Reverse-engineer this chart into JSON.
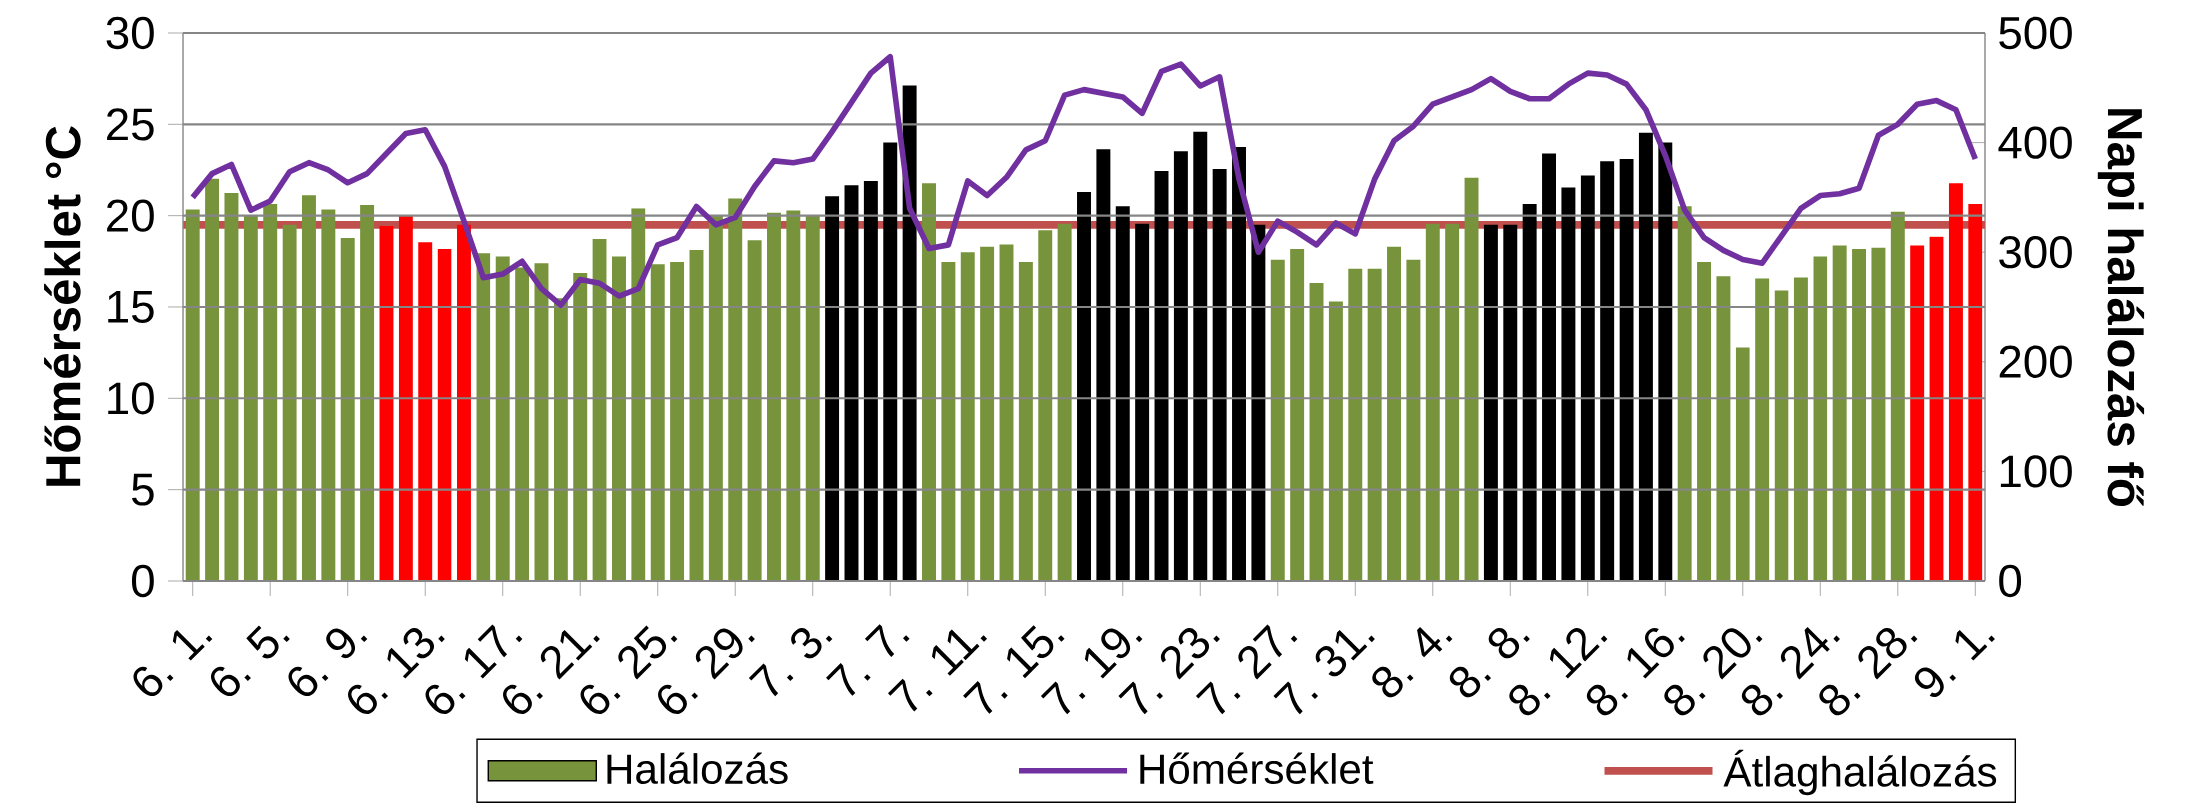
{
  "chart_data": {
    "type": "bar",
    "categories": [
      "6. 1.",
      null,
      null,
      null,
      "6. 5.",
      null,
      null,
      null,
      "6. 9.",
      null,
      null,
      null,
      "6. 13.",
      null,
      null,
      null,
      "6. 17.",
      null,
      null,
      null,
      "6. 21.",
      null,
      null,
      null,
      "6. 25.",
      null,
      null,
      null,
      "6. 29.",
      null,
      null,
      null,
      "7. 3.",
      null,
      null,
      null,
      "7. 7.",
      null,
      null,
      null,
      "7. 11.",
      null,
      null,
      null,
      "7. 15.",
      null,
      null,
      null,
      "7. 19.",
      null,
      null,
      null,
      "7. 23.",
      null,
      null,
      null,
      "7. 27.",
      null,
      null,
      null,
      "7. 31.",
      null,
      null,
      null,
      "8. 4.",
      null,
      null,
      null,
      "8. 8.",
      null,
      null,
      null,
      "8. 12.",
      null,
      null,
      null,
      "8. 16.",
      null,
      null,
      null,
      "8. 20.",
      null,
      null,
      null,
      "8. 24.",
      null,
      null,
      null,
      "8. 28.",
      null,
      null,
      null,
      "9. 1."
    ],
    "series": [
      {
        "name": "Halálozás",
        "axis": "y2",
        "color": "#77933c",
        "values": [
          339,
          367,
          354,
          333,
          344,
          325,
          352,
          339,
          313,
          343,
          324,
          333,
          309,
          303,
          325,
          299,
          296,
          286,
          290,
          258,
          281,
          312,
          296,
          340,
          289,
          291,
          302,
          334,
          349,
          311,
          336,
          338,
          334,
          351,
          361,
          365,
          400,
          452,
          363,
          291,
          300,
          305,
          307,
          291,
          320,
          326,
          355,
          394,
          342,
          326,
          374,
          392,
          410,
          376,
          396,
          325,
          293,
          303,
          272,
          255,
          285,
          285,
          305,
          293,
          326,
          326,
          368,
          325,
          325,
          344,
          390,
          359,
          370,
          383,
          385,
          409,
          400,
          342,
          291,
          278,
          213,
          276,
          265,
          277,
          296,
          306,
          303,
          304,
          337,
          306,
          314,
          363,
          344
        ],
        "colors": [
          "#77933c",
          "#77933c",
          "#77933c",
          "#77933c",
          "#77933c",
          "#77933c",
          "#77933c",
          "#77933c",
          "#77933c",
          "#77933c",
          "#ff0000",
          "#ff0000",
          "#ff0000",
          "#ff0000",
          "#ff0000",
          "#77933c",
          "#77933c",
          "#77933c",
          "#77933c",
          "#77933c",
          "#77933c",
          "#77933c",
          "#77933c",
          "#77933c",
          "#77933c",
          "#77933c",
          "#77933c",
          "#77933c",
          "#77933c",
          "#77933c",
          "#77933c",
          "#77933c",
          "#77933c",
          "#000000",
          "#000000",
          "#000000",
          "#000000",
          "#000000",
          "#77933c",
          "#77933c",
          "#77933c",
          "#77933c",
          "#77933c",
          "#77933c",
          "#77933c",
          "#77933c",
          "#000000",
          "#000000",
          "#000000",
          "#000000",
          "#000000",
          "#000000",
          "#000000",
          "#000000",
          "#000000",
          "#000000",
          "#77933c",
          "#77933c",
          "#77933c",
          "#77933c",
          "#77933c",
          "#77933c",
          "#77933c",
          "#77933c",
          "#77933c",
          "#77933c",
          "#77933c",
          "#000000",
          "#000000",
          "#000000",
          "#000000",
          "#000000",
          "#000000",
          "#000000",
          "#000000",
          "#000000",
          "#000000",
          "#77933c",
          "#77933c",
          "#77933c",
          "#77933c",
          "#77933c",
          "#77933c",
          "#77933c",
          "#77933c",
          "#77933c",
          "#77933c",
          "#77933c",
          "#77933c",
          "#ff0000",
          "#ff0000",
          "#ff0000",
          "#ff0000"
        ]
      },
      {
        "name": "Hőmérséklet",
        "type": "line",
        "color": "#7030a0",
        "values": [
          21.0,
          22.3,
          22.8,
          20.3,
          20.8,
          22.4,
          22.9,
          22.5,
          21.8,
          22.3,
          23.4,
          24.5,
          24.7,
          22.7,
          19.7,
          16.6,
          16.8,
          17.5,
          16.0,
          15.1,
          16.5,
          16.3,
          15.6,
          16.0,
          18.4,
          18.8,
          20.5,
          19.5,
          19.9,
          21.6,
          23.0,
          22.9,
          23.1,
          24.6,
          26.2,
          27.8,
          28.7,
          20.4,
          18.2,
          18.4,
          21.9,
          21.1,
          22.1,
          23.6,
          24.1,
          26.6,
          26.9,
          26.7,
          26.5,
          25.6,
          27.9,
          28.3,
          27.1,
          27.6,
          22.0,
          18.0,
          19.7,
          19.1,
          18.4,
          19.6,
          19.0,
          22.0,
          24.1,
          24.9,
          26.1,
          26.5,
          26.9,
          27.5,
          26.8,
          26.4,
          26.4,
          27.2,
          27.8,
          27.7,
          27.2,
          25.8,
          23.3,
          20.3,
          18.8,
          18.1,
          17.6,
          17.4,
          18.9,
          20.4,
          21.1,
          21.2,
          21.5,
          24.4,
          25.0,
          26.1,
          26.3,
          25.8,
          23.1
        ]
      }
    ],
    "ref_lines": [
      {
        "axis": "y2",
        "value": 325,
        "label": "Átlaghalálozás",
        "color": "#c0504d"
      }
    ],
    "ylabel": "Hőmérséklet °C",
    "y2label": "Napi halálozás fő",
    "ylim": [
      0,
      30
    ],
    "yticks": [
      0,
      5,
      10,
      15,
      20,
      25,
      30
    ],
    "y2lim": [
      0,
      500
    ],
    "y2ticks": [
      0,
      100,
      200,
      300,
      400,
      500
    ],
    "grid": "y",
    "legend": "bottom"
  }
}
